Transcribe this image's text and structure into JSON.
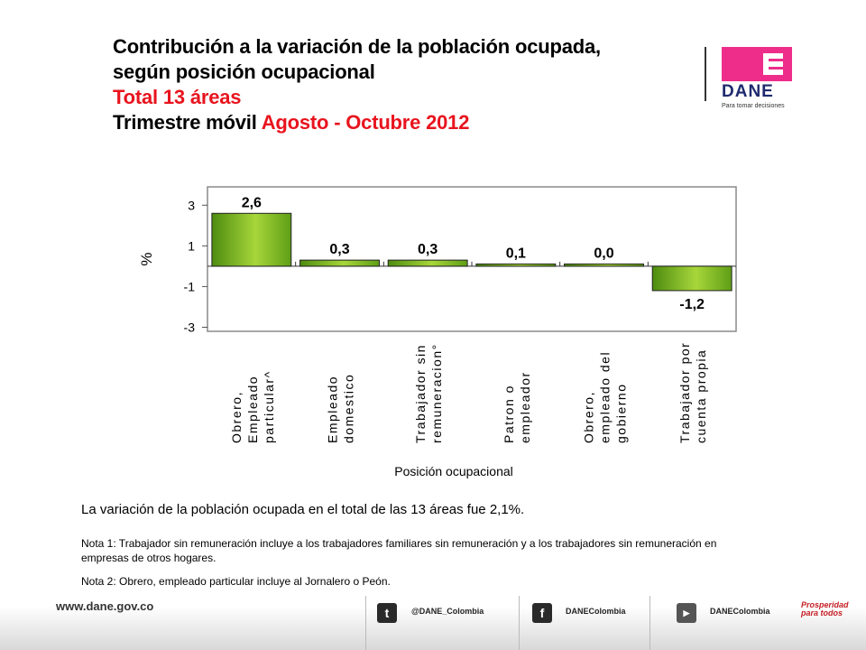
{
  "title": {
    "line1": "Contribución a la variación de la población ocupada,",
    "line2": "según posición ocupacional",
    "line3": "Total 13 áreas",
    "line4_prefix": "Trimestre móvil ",
    "line4_period": "Agosto - Octubre 2012"
  },
  "logo": {
    "name": "DANE",
    "tagline": "Para tomar decisiones"
  },
  "chart_data": {
    "type": "bar",
    "categories": [
      [
        "Obrero,",
        "Empleado",
        "particular^"
      ],
      [
        "Empleado",
        "domestico"
      ],
      [
        "Trabajador sin",
        "remuneracion°"
      ],
      [
        "Patron o",
        "empleador"
      ],
      [
        "Obrero,",
        "empleado del",
        "gobierno"
      ],
      [
        "Trabajador por",
        "cuenta propia"
      ]
    ],
    "values": [
      2.6,
      0.3,
      0.3,
      0.1,
      0.0,
      -1.2
    ],
    "data_labels": [
      "2,6",
      "0,3",
      "0,3",
      "0,1",
      "0,0",
      "-1,2"
    ],
    "ylabel": "%",
    "xlabel": "Posición ocupacional",
    "yticks": [
      3,
      1,
      -1,
      -3
    ],
    "ylim": [
      -3.2,
      3.9
    ],
    "grid": false,
    "bar_color": "#6fae1c",
    "plot_background": "#ffffff",
    "frame_color": "#8a8a8a"
  },
  "summary": "La variación de la población ocupada en el total de las 13 áreas fue 2,1%.",
  "notes": {
    "note1": "Nota 1: Trabajador sin remuneración incluye a los trabajadores familiares sin remuneración y a los trabajadores sin remuneración en empresas de otros hogares.",
    "note2": "Nota 2: Obrero, empleado particular incluye al Jornalero o Peón."
  },
  "footer": {
    "website": "www.dane.gov.co",
    "twitter": {
      "icon": "twitter-icon",
      "label": "@DANE_Colombia"
    },
    "facebook": {
      "icon": "facebook-icon",
      "label": "DANEColombia"
    },
    "youtube": {
      "icon": "youtube-icon",
      "label": "DANEColombia"
    },
    "badge": "Prosperidad para todos"
  }
}
